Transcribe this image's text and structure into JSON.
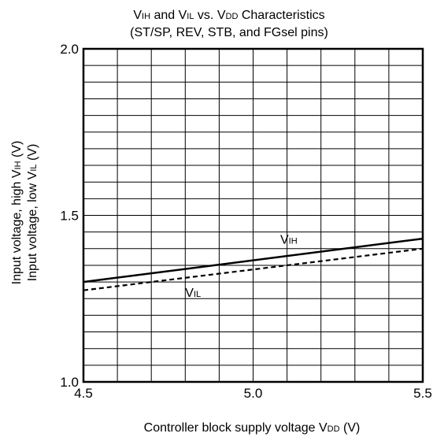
{
  "chart_data": {
    "type": "line",
    "title_line1": {
      "main1": "V",
      "sub1": "IH",
      "main2": " and V",
      "sub2": "IL",
      "main3": " vs. V",
      "sub3": "DD",
      "main4": " Characteristics"
    },
    "title_line2": "(ST/SP, REV, STB, and FGsel pins)",
    "xlabel": {
      "main": "Controller block supply voltage V",
      "sub": "DD",
      "tail": " (V)"
    },
    "ylabel_line1": {
      "main": "Input voltage, high V",
      "sub": "IH",
      "tail": " (V)"
    },
    "ylabel_line2": {
      "main": "Input voltage, low V",
      "sub": "IL",
      "tail": " (V)"
    },
    "xlim": [
      4.5,
      5.5
    ],
    "ylim": [
      1.0,
      2.0
    ],
    "x_ticks": [
      {
        "value": 4.5,
        "label": "4.5"
      },
      {
        "value": 5.0,
        "label": "5.0"
      },
      {
        "value": 5.5,
        "label": "5.5"
      }
    ],
    "y_ticks": [
      {
        "value": 1.0,
        "label": "1.0"
      },
      {
        "value": 1.5,
        "label": "1.5"
      },
      {
        "value": 2.0,
        "label": "2.0"
      }
    ],
    "x_grid_step": 0.1,
    "y_grid_step": 0.05,
    "grid": true,
    "series": [
      {
        "name": {
          "main": "V",
          "sub": "IH"
        },
        "style": "solid",
        "x": [
          4.5,
          5.5
        ],
        "y": [
          1.3,
          1.43
        ],
        "label_at": {
          "x": 5.08,
          "y": 1.415
        }
      },
      {
        "name": {
          "main": "V",
          "sub": "IL"
        },
        "style": "dashed",
        "x": [
          4.5,
          5.5
        ],
        "y": [
          1.275,
          1.4
        ],
        "label_at": {
          "x": 4.8,
          "y": 1.255
        }
      }
    ],
    "colors": {
      "line": "#000000",
      "grid": "#000000",
      "background": "#ffffff"
    }
  }
}
